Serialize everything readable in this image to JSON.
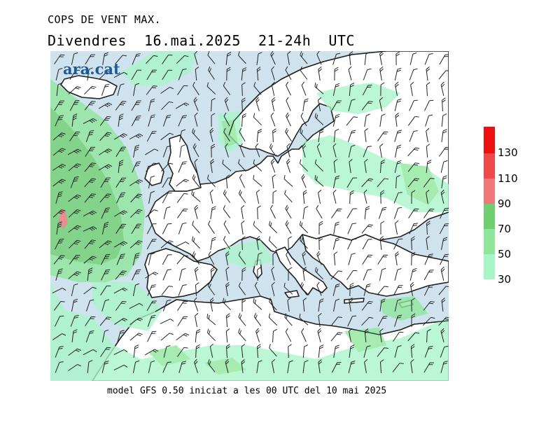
{
  "header": {
    "title": "COPS DE VENT MAX.",
    "subtitle": "Divendres  16.mai.2025  21-24h  UTC"
  },
  "map": {
    "logo_text": "ara.cat",
    "colors": {
      "sea": "#cfe3ef",
      "land": "#ffffff",
      "coast": "#222222",
      "barb": "#222222"
    }
  },
  "legend": {
    "unit_thresholds": [
      "30",
      "50",
      "70",
      "90",
      "110",
      "130"
    ],
    "colors": [
      "#a8f5c8",
      "#8ee69a",
      "#6fcf6f",
      "#f07878",
      "#ee4848",
      "#ee1010"
    ]
  },
  "footer": {
    "text": "model GFS 0.50 iniciat a les 00 UTC del 10 mai 2025"
  }
}
